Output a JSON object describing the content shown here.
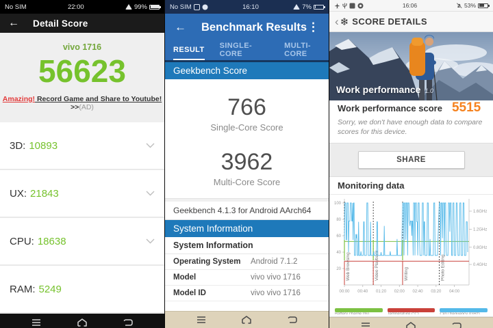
{
  "left_panel": {
    "status": {
      "carrier": "No SIM",
      "time": "22:00",
      "battery_pct": "99%"
    },
    "header": {
      "back": "←",
      "title": "Detail Score"
    },
    "device_name": "vivo 1716",
    "total_score": "56623",
    "ad": {
      "highlight": "Amazing!",
      "link_text": " Record Game and Share to Youtube!",
      "arrows": " >>",
      "tag": "(AD)"
    },
    "score_rows": [
      {
        "label": "3D:",
        "value": "10893"
      },
      {
        "label": "UX:",
        "value": "21843"
      },
      {
        "label": "CPU:",
        "value": "18638"
      },
      {
        "label": "RAM:",
        "value": "5249"
      }
    ],
    "colors": {
      "accent_green": "#76c22d",
      "ad_red": "#e23b3b"
    }
  },
  "middle_panel": {
    "status": {
      "carrier": "No SIM",
      "time": "16:10",
      "battery_pct": "7%"
    },
    "header": {
      "back": "←",
      "title": "Benchmark Results",
      "menu": "⋮"
    },
    "tabs": [
      {
        "label": "RESULT"
      },
      {
        "label": "SINGLE-CORE"
      },
      {
        "label": "MULTI-CORE"
      }
    ],
    "score_banner": "Geekbench Score",
    "scores": [
      {
        "value": "766",
        "label": "Single-Core Score"
      },
      {
        "value": "3962",
        "label": "Multi-Core Score"
      }
    ],
    "version_line": "Geekbench 4.1.3 for Android AArch64",
    "sysinfo_banner": "System Information",
    "sysinfo_header": "System Information",
    "sysinfo_rows": [
      {
        "label": "Operating System",
        "value": "Android 7.1.2"
      },
      {
        "label": "Model",
        "value": "vivo vivo 1716"
      },
      {
        "label": "Model ID",
        "value": "vivo vivo 1716"
      }
    ],
    "colors": {
      "primary_blue": "#2d6cb5",
      "banner_blue": "#1e79ba",
      "status_navy": "#1b2f52"
    }
  },
  "right_panel": {
    "status": {
      "time": "16:06",
      "battery_pct": "53%"
    },
    "header": {
      "back": "‹",
      "logo": "❄",
      "title": "SCORE DETAILS"
    },
    "hero": {
      "title": "Work performance",
      "version": "1.0"
    },
    "score_line": {
      "label": "Work performance score",
      "value": "5515"
    },
    "note": "Sorry, we don't have enough data to compare scores for this device.",
    "share_button": "SHARE",
    "monitoring_header": "Monitoring data",
    "colors": {
      "accent_orange": "#f5821f"
    }
  },
  "chart_data": {
    "type": "line",
    "title": "Monitoring data",
    "grid": false,
    "legend_position": "bottom",
    "t_max": 272,
    "y_left": {
      "label": "",
      "ticks": [
        100,
        80,
        60,
        40,
        20
      ],
      "range": [
        0,
        105
      ]
    },
    "y_right": {
      "ticks": [
        {
          "pos": 90,
          "label": "1.6GHz"
        },
        {
          "pos": 68,
          "label": "1.2GHz"
        },
        {
          "pos": 46,
          "label": "0.8GHz"
        },
        {
          "pos": 25,
          "label": "0.4GHz"
        }
      ]
    },
    "x_ticks": [
      {
        "t": 0,
        "label": "00:00"
      },
      {
        "t": 40,
        "label": "00:40"
      },
      {
        "t": 80,
        "label": "01:20"
      },
      {
        "t": 120,
        "label": "02:00"
      },
      {
        "t": 160,
        "label": "02:40"
      },
      {
        "t": 200,
        "label": "03:20"
      },
      {
        "t": 240,
        "label": "04:00"
      }
    ],
    "sections": [
      {
        "t": 0,
        "label": "Web Browsing"
      },
      {
        "t": 63,
        "label": "Video Playback"
      },
      {
        "t": 127,
        "label": "Writing"
      },
      {
        "t": 207,
        "label": "Photo Editing"
      }
    ],
    "red_verticals": [
      0,
      63,
      127
    ],
    "green_marks": [
      0,
      63,
      127
    ],
    "series": [
      {
        "name": "Battery charge",
        "color": "#7cc142",
        "type": "hline",
        "value": 53
      },
      {
        "name": "Temperature",
        "color": "#c9413a",
        "type": "hline",
        "value": 29
      },
      {
        "name": "CPU frequency",
        "color": "#54b9e9",
        "type": "line",
        "points": [
          [
            0,
            55
          ],
          [
            1,
            100
          ],
          [
            3,
            100
          ],
          [
            4,
            55
          ],
          [
            5,
            55
          ],
          [
            6,
            100
          ],
          [
            8,
            100
          ],
          [
            9,
            40
          ],
          [
            10,
            78
          ],
          [
            12,
            78
          ],
          [
            13,
            100
          ],
          [
            15,
            100
          ],
          [
            16,
            78
          ],
          [
            17,
            78
          ],
          [
            18,
            100
          ],
          [
            19,
            55
          ],
          [
            20,
            100
          ],
          [
            21,
            100
          ],
          [
            22,
            36
          ],
          [
            24,
            36
          ],
          [
            25,
            62
          ],
          [
            26,
            57
          ],
          [
            27,
            62
          ],
          [
            28,
            36
          ],
          [
            30,
            36
          ],
          [
            31,
            77
          ],
          [
            32,
            36
          ],
          [
            35,
            36
          ],
          [
            36,
            41
          ],
          [
            37,
            36
          ],
          [
            41,
            36
          ],
          [
            42,
            77
          ],
          [
            43,
            77
          ],
          [
            44,
            36
          ],
          [
            48,
            36
          ],
          [
            49,
            100
          ],
          [
            51,
            100
          ],
          [
            52,
            36
          ],
          [
            56,
            36
          ],
          [
            57,
            77
          ],
          [
            58,
            36
          ],
          [
            61,
            36
          ],
          [
            63,
            36
          ],
          [
            64,
            41
          ],
          [
            65,
            36
          ],
          [
            70,
            36
          ],
          [
            71,
            77
          ],
          [
            72,
            77
          ],
          [
            73,
            36
          ],
          [
            79,
            36
          ],
          [
            80,
            40
          ],
          [
            81,
            36
          ],
          [
            86,
            36
          ],
          [
            87,
            72
          ],
          [
            88,
            36
          ],
          [
            95,
            36
          ],
          [
            99,
            36
          ],
          [
            100,
            41
          ],
          [
            101,
            36
          ],
          [
            110,
            36
          ],
          [
            114,
            36
          ],
          [
            115,
            56
          ],
          [
            116,
            36
          ],
          [
            125,
            36
          ],
          [
            127,
            100
          ],
          [
            129,
            100
          ],
          [
            130,
            36
          ],
          [
            131,
            100
          ],
          [
            133,
            100
          ],
          [
            134,
            55
          ],
          [
            135,
            100
          ],
          [
            137,
            100
          ],
          [
            138,
            36
          ],
          [
            139,
            100
          ],
          [
            141,
            100
          ],
          [
            142,
            78
          ],
          [
            143,
            72
          ],
          [
            144,
            78
          ],
          [
            146,
            78
          ],
          [
            147,
            60
          ],
          [
            148,
            78
          ],
          [
            149,
            78
          ],
          [
            150,
            36
          ],
          [
            151,
            100
          ],
          [
            153,
            100
          ],
          [
            154,
            36
          ],
          [
            155,
            100
          ],
          [
            157,
            100
          ],
          [
            158,
            77
          ],
          [
            159,
            77
          ],
          [
            160,
            36
          ],
          [
            161,
            100
          ],
          [
            163,
            100
          ],
          [
            164,
            56
          ],
          [
            165,
            36
          ],
          [
            169,
            36
          ],
          [
            170,
            100
          ],
          [
            172,
            100
          ],
          [
            173,
            36
          ],
          [
            174,
            77
          ],
          [
            175,
            77
          ],
          [
            176,
            36
          ],
          [
            180,
            36
          ],
          [
            181,
            100
          ],
          [
            183,
            100
          ],
          [
            184,
            36
          ],
          [
            186,
            36
          ],
          [
            187,
            56
          ],
          [
            188,
            36
          ],
          [
            194,
            36
          ],
          [
            195,
            100
          ],
          [
            197,
            100
          ],
          [
            198,
            36
          ],
          [
            203,
            36
          ],
          [
            207,
            100
          ],
          [
            209,
            100
          ],
          [
            210,
            36
          ],
          [
            211,
            100
          ],
          [
            213,
            100
          ],
          [
            214,
            57
          ],
          [
            215,
            100
          ],
          [
            217,
            100
          ],
          [
            218,
            36
          ],
          [
            219,
            100
          ],
          [
            221,
            100
          ],
          [
            222,
            41
          ],
          [
            223,
            36
          ],
          [
            226,
            36
          ],
          [
            227,
            100
          ],
          [
            229,
            100
          ],
          [
            230,
            65
          ],
          [
            231,
            100
          ],
          [
            233,
            100
          ],
          [
            234,
            36
          ],
          [
            236,
            36
          ],
          [
            237,
            100
          ],
          [
            239,
            100
          ],
          [
            240,
            36
          ],
          [
            243,
            36
          ],
          [
            244,
            100
          ],
          [
            246,
            100
          ],
          [
            247,
            57
          ],
          [
            248,
            36
          ],
          [
            251,
            36
          ],
          [
            252,
            100
          ],
          [
            254,
            100
          ],
          [
            255,
            36
          ],
          [
            258,
            36
          ],
          [
            259,
            100
          ],
          [
            261,
            100
          ],
          [
            262,
            36
          ],
          [
            265,
            36
          ],
          [
            266,
            77
          ],
          [
            268,
            77
          ],
          [
            269,
            40
          ]
        ]
      }
    ],
    "legend": [
      {
        "label": "Battery charge (%)",
        "color": "#7cc142"
      },
      {
        "label": "Temperature (°C)",
        "color": "#c9413a"
      },
      {
        "label": "CPU frequency (GHz)",
        "color": "#54b9e9"
      }
    ]
  }
}
